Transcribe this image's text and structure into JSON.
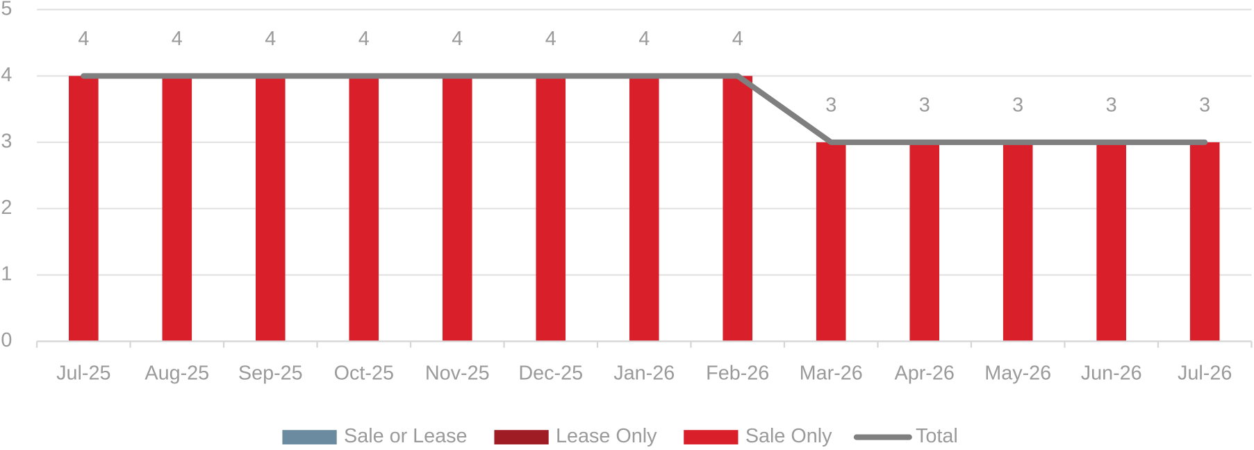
{
  "chart_data": {
    "type": "bar",
    "stacked": true,
    "categories": [
      "Jul-25",
      "Aug-25",
      "Sep-25",
      "Oct-25",
      "Nov-25",
      "Dec-25",
      "Jan-26",
      "Feb-26",
      "Mar-26",
      "Apr-26",
      "May-26",
      "Jun-26",
      "Jul-26"
    ],
    "series": [
      {
        "name": "Sale or Lease",
        "color": "#6b8ba0",
        "values": [
          0,
          0,
          0,
          0,
          0,
          0,
          0,
          0,
          0,
          0,
          0,
          0,
          0
        ]
      },
      {
        "name": "Lease Only",
        "color": "#a01c24",
        "values": [
          0,
          0,
          0,
          0,
          0,
          0,
          0,
          0,
          0,
          0,
          0,
          0,
          0
        ]
      },
      {
        "name": "Sale Only",
        "color": "#d91f2a",
        "values": [
          4,
          4,
          4,
          4,
          4,
          4,
          4,
          4,
          3,
          3,
          3,
          3,
          3
        ]
      },
      {
        "name": "Total",
        "type": "line",
        "color": "#7f7f7f",
        "values": [
          4,
          4,
          4,
          4,
          4,
          4,
          4,
          4,
          3,
          3,
          3,
          3,
          3
        ],
        "data_labels": true
      }
    ],
    "ylim": [
      0,
      5
    ],
    "yticks": [
      0,
      1,
      2,
      3,
      4,
      5
    ],
    "grid": true,
    "legend": "bottom"
  }
}
